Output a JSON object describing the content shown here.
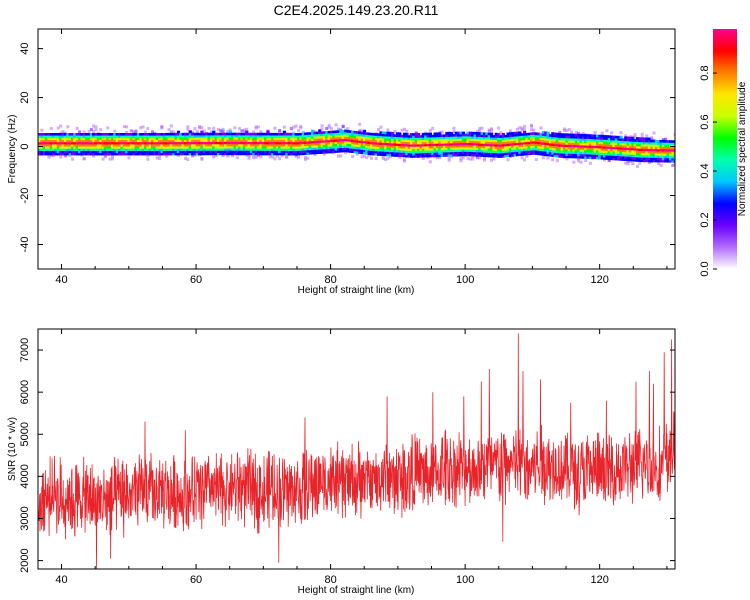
{
  "title": "C2E4.2025.149.23.20.R11",
  "spectrogram": {
    "xlabel": "Height of straight line (km)",
    "ylabel": "Frequency (Hz)",
    "xlim": [
      36.5,
      131.2
    ],
    "ylim": [
      -50,
      48
    ],
    "xticks": [
      "40",
      "60",
      "80",
      "100",
      "120"
    ],
    "yticks": [
      "40",
      "20",
      "0",
      "-20",
      "-40"
    ],
    "colorbar": {
      "label": "Normalized spectral amplitude",
      "range": [
        0,
        0.98
      ],
      "ticks": [
        "0.0",
        "0.2",
        "0.4",
        "0.6",
        "0.8"
      ],
      "colormap": [
        "#ffffff",
        "#b16cff",
        "#6a00ff",
        "#0000ff",
        "#00c8ff",
        "#00ffaa",
        "#00ff00",
        "#c8ff00",
        "#ffe600",
        "#ff7f00",
        "#ff0000",
        "#ff008c"
      ]
    },
    "band_center_hz": [
      [
        37,
        1.5
      ],
      [
        45,
        1.5
      ],
      [
        55,
        1.5
      ],
      [
        65,
        1.6
      ],
      [
        75,
        1.5
      ],
      [
        82,
        2.8
      ],
      [
        86,
        1.5
      ],
      [
        92,
        0.5
      ],
      [
        100,
        1.2
      ],
      [
        105,
        0.5
      ],
      [
        110,
        1.8
      ],
      [
        114,
        0.5
      ],
      [
        119,
        0.0
      ],
      [
        122,
        -0.5
      ],
      [
        126,
        -1.2
      ],
      [
        131,
        -1.5
      ]
    ]
  },
  "chart_data": {
    "type": "line",
    "title": "C2E4.2025.149.23.20.R11",
    "xlabel": "Height of straight line (km)",
    "ylabel": "SNR (10 * v/v)",
    "xlim": [
      36.5,
      131.2
    ],
    "ylim": [
      1800,
      7500
    ],
    "xticks": [
      40,
      60,
      80,
      100,
      120
    ],
    "yticks": [
      2000,
      3000,
      4000,
      5000,
      6000,
      7000
    ],
    "series": [
      {
        "color": "#e8232a",
        "points": [
          [
            37,
            3400
          ],
          [
            39,
            3550
          ],
          [
            41,
            3450
          ],
          [
            43,
            3500
          ],
          [
            45,
            3400
          ],
          [
            47,
            3450
          ],
          [
            49,
            3500
          ],
          [
            51,
            3600
          ],
          [
            53,
            3650
          ],
          [
            55,
            3550
          ],
          [
            57,
            3600
          ],
          [
            59,
            3550
          ],
          [
            61,
            3700
          ],
          [
            63,
            3650
          ],
          [
            65,
            3700
          ],
          [
            67,
            3800
          ],
          [
            69,
            3650
          ],
          [
            71,
            3700
          ],
          [
            73,
            3750
          ],
          [
            75,
            3650
          ],
          [
            77,
            3800
          ],
          [
            79,
            3900
          ],
          [
            81,
            3850
          ],
          [
            83,
            3900
          ],
          [
            85,
            3850
          ],
          [
            87,
            3900
          ],
          [
            89,
            3950
          ],
          [
            91,
            4000
          ],
          [
            93,
            4100
          ],
          [
            95,
            3950
          ],
          [
            97,
            4200
          ],
          [
            99,
            4200
          ],
          [
            101,
            4150
          ],
          [
            103,
            4300
          ],
          [
            105,
            4250
          ],
          [
            107,
            4300
          ],
          [
            109,
            4200
          ],
          [
            111,
            4300
          ],
          [
            113,
            4250
          ],
          [
            115,
            4200
          ],
          [
            117,
            4100
          ],
          [
            119,
            4150
          ],
          [
            121,
            4100
          ],
          [
            123,
            4200
          ],
          [
            125,
            4200
          ],
          [
            127,
            4300
          ],
          [
            129,
            4250
          ],
          [
            131,
            4600
          ]
        ],
        "spikes": [
          [
            37.6,
            4150
          ],
          [
            45.2,
            1800
          ],
          [
            47.3,
            2050
          ],
          [
            52.4,
            5300
          ],
          [
            58.4,
            5100
          ],
          [
            72.3,
            1950
          ],
          [
            76.2,
            5400
          ],
          [
            88.4,
            5900
          ],
          [
            92.1,
            5000
          ],
          [
            95.2,
            6000
          ],
          [
            99.8,
            5900
          ],
          [
            102.4,
            6250
          ],
          [
            103.6,
            6550
          ],
          [
            105.6,
            2450
          ],
          [
            107.9,
            7400
          ],
          [
            108.6,
            6500
          ],
          [
            111.2,
            6300
          ],
          [
            115.7,
            5750
          ],
          [
            121.0,
            5800
          ],
          [
            125.4,
            6250
          ],
          [
            127.4,
            6500
          ],
          [
            128.0,
            6200
          ],
          [
            129.6,
            6950
          ],
          [
            130.7,
            7250
          ]
        ]
      }
    ]
  }
}
